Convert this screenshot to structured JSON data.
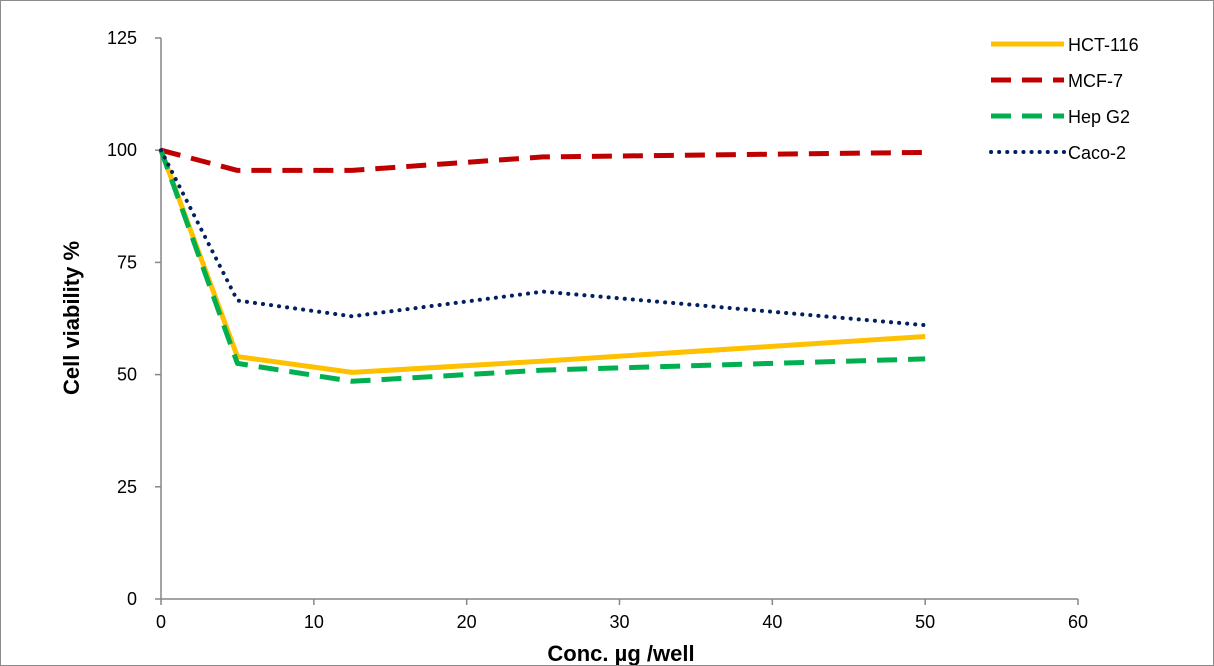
{
  "chart_data": {
    "type": "line",
    "xlabel": "Conc. µg /well",
    "ylabel": "Cell viability %",
    "xlim": [
      0,
      60
    ],
    "ylim": [
      0,
      125
    ],
    "x_ticks": [
      "0",
      "10",
      "20",
      "30",
      "40",
      "50",
      "60"
    ],
    "y_ticks": [
      "0",
      "25",
      "50",
      "75",
      "100",
      "125"
    ],
    "grid": false,
    "legend_position": "top-right",
    "series": [
      {
        "name": "HCT-116",
        "color": "#FFC000",
        "line_style": "solid",
        "x": [
          0,
          5,
          12.5,
          25,
          50
        ],
        "y": [
          100,
          54,
          50.5,
          53,
          58.5
        ]
      },
      {
        "name": "MCF-7",
        "color": "#C00000",
        "line_style": "dashed",
        "x": [
          0,
          5,
          12.5,
          25,
          50
        ],
        "y": [
          100,
          95.5,
          95.5,
          98.5,
          99.5
        ]
      },
      {
        "name": "Hep G2",
        "color": "#00B050",
        "line_style": "dashed",
        "x": [
          0,
          5,
          12.5,
          25,
          50
        ],
        "y": [
          100,
          52.5,
          48.5,
          51,
          53.5
        ]
      },
      {
        "name": "Caco-2",
        "color": "#002060",
        "line_style": "dotted",
        "x": [
          0,
          5,
          12.5,
          25,
          50
        ],
        "y": [
          100,
          66.5,
          63,
          68.5,
          61
        ]
      }
    ]
  }
}
